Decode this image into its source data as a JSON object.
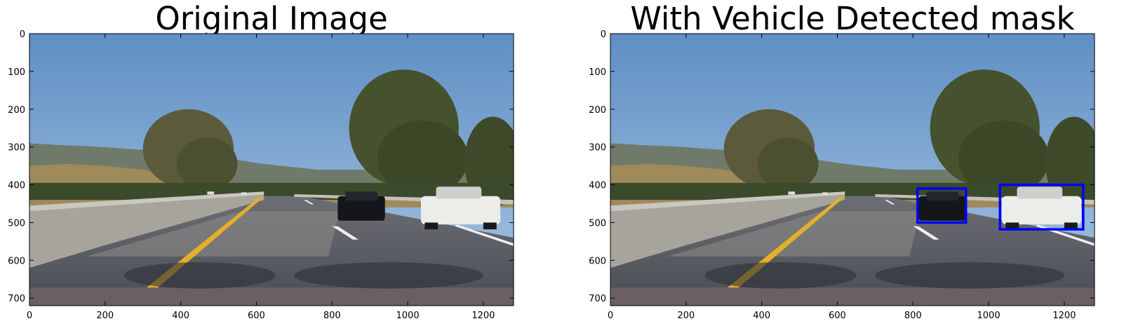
{
  "panels": [
    {
      "title": "Original Image",
      "x_ticks": [
        "0",
        "200",
        "400",
        "600",
        "800",
        "1000",
        "1200"
      ],
      "y_ticks": [
        "0",
        "100",
        "200",
        "300",
        "400",
        "500",
        "600",
        "700"
      ],
      "image_extent": {
        "width": 1280,
        "height": 720
      },
      "boxes": []
    },
    {
      "title": "With Vehicle Detected mask",
      "x_ticks": [
        "0",
        "200",
        "400",
        "600",
        "800",
        "1000",
        "1200"
      ],
      "y_ticks": [
        "0",
        "100",
        "200",
        "300",
        "400",
        "500",
        "600",
        "700"
      ],
      "image_extent": {
        "width": 1280,
        "height": 720
      },
      "boxes": [
        {
          "label": "vehicle-black-sedan",
          "x0": 812,
          "y0": 410,
          "x1": 940,
          "y1": 500
        },
        {
          "label": "vehicle-white-sedan",
          "x0": 1030,
          "y0": 400,
          "x1": 1250,
          "y1": 518
        }
      ]
    }
  ],
  "colors": {
    "box": "#0000ff",
    "sky_top": "#5f8fc4",
    "sky_bottom": "#a9c7e2",
    "road": "#4a4c55",
    "lane_yellow": "#e2b02a"
  }
}
